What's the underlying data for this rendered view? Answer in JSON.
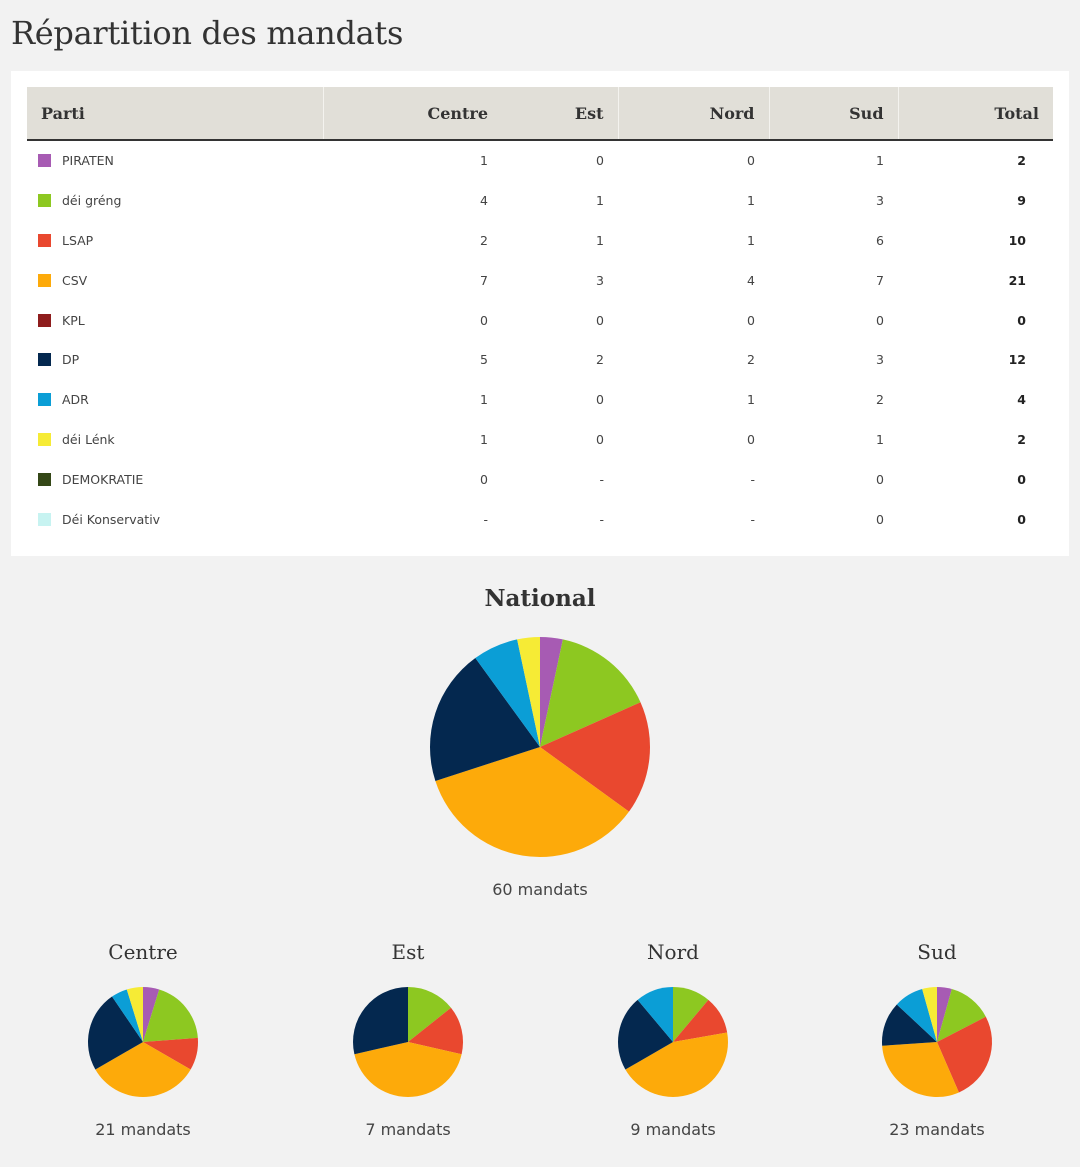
{
  "page_title": "Répartition des mandats",
  "table": {
    "headers": [
      "Parti",
      "Centre",
      "Est",
      "Nord",
      "Sud",
      "Total"
    ],
    "rows": [
      {
        "party": "PIRATEN",
        "color": "#a75bb3",
        "centre": "1",
        "est": "0",
        "nord": "0",
        "sud": "1",
        "total": "2"
      },
      {
        "party": "déi gréng",
        "color": "#8dc821",
        "centre": "4",
        "est": "1",
        "nord": "1",
        "sud": "3",
        "total": "9"
      },
      {
        "party": "LSAP",
        "color": "#e9482f",
        "centre": "2",
        "est": "1",
        "nord": "1",
        "sud": "6",
        "total": "10"
      },
      {
        "party": "CSV",
        "color": "#fdaa0a",
        "centre": "7",
        "est": "3",
        "nord": "4",
        "sud": "7",
        "total": "21"
      },
      {
        "party": "KPL",
        "color": "#8e1d1d",
        "centre": "0",
        "est": "0",
        "nord": "0",
        "sud": "0",
        "total": "0"
      },
      {
        "party": "DP",
        "color": "#04284f",
        "centre": "5",
        "est": "2",
        "nord": "2",
        "sud": "3",
        "total": "12"
      },
      {
        "party": "ADR",
        "color": "#0b9ed6",
        "centre": "1",
        "est": "0",
        "nord": "1",
        "sud": "2",
        "total": "4"
      },
      {
        "party": "déi Lénk",
        "color": "#f6eb35",
        "centre": "1",
        "est": "0",
        "nord": "0",
        "sud": "1",
        "total": "2"
      },
      {
        "party": "DEMOKRATIE",
        "color": "#344717",
        "centre": "0",
        "est": "-",
        "nord": "-",
        "sud": "0",
        "total": "0"
      },
      {
        "party": "Déi Konservativ",
        "color": "#c7f3f1",
        "centre": "-",
        "est": "-",
        "nord": "-",
        "sud": "0",
        "total": "0"
      }
    ]
  },
  "chart_data": [
    {
      "type": "pie",
      "title": "National",
      "subtitle": "60 mandats",
      "labels": [
        "PIRATEN",
        "déi gréng",
        "LSAP",
        "CSV",
        "KPL",
        "DP",
        "ADR",
        "déi Lénk"
      ],
      "colors": [
        "#a75bb3",
        "#8dc821",
        "#e9482f",
        "#fdaa0a",
        "#8e1d1d",
        "#04284f",
        "#0b9ed6",
        "#f6eb35"
      ],
      "values": [
        2,
        9,
        10,
        21,
        0,
        12,
        4,
        2
      ]
    },
    {
      "type": "pie",
      "title": "Centre",
      "subtitle": "21 mandats",
      "labels": [
        "PIRATEN",
        "déi gréng",
        "LSAP",
        "CSV",
        "KPL",
        "DP",
        "ADR",
        "déi Lénk"
      ],
      "colors": [
        "#a75bb3",
        "#8dc821",
        "#e9482f",
        "#fdaa0a",
        "#8e1d1d",
        "#04284f",
        "#0b9ed6",
        "#f6eb35"
      ],
      "values": [
        1,
        4,
        2,
        7,
        0,
        5,
        1,
        1
      ]
    },
    {
      "type": "pie",
      "title": "Est",
      "subtitle": "7 mandats",
      "labels": [
        "PIRATEN",
        "déi gréng",
        "LSAP",
        "CSV",
        "KPL",
        "DP",
        "ADR",
        "déi Lénk"
      ],
      "colors": [
        "#a75bb3",
        "#8dc821",
        "#e9482f",
        "#fdaa0a",
        "#8e1d1d",
        "#04284f",
        "#0b9ed6",
        "#f6eb35"
      ],
      "values": [
        0,
        1,
        1,
        3,
        0,
        2,
        0,
        0
      ]
    },
    {
      "type": "pie",
      "title": "Nord",
      "subtitle": "9 mandats",
      "labels": [
        "PIRATEN",
        "déi gréng",
        "LSAP",
        "CSV",
        "KPL",
        "DP",
        "ADR",
        "déi Lénk"
      ],
      "colors": [
        "#a75bb3",
        "#8dc821",
        "#e9482f",
        "#fdaa0a",
        "#8e1d1d",
        "#04284f",
        "#0b9ed6",
        "#f6eb35"
      ],
      "values": [
        0,
        1,
        1,
        4,
        0,
        2,
        1,
        0
      ]
    },
    {
      "type": "pie",
      "title": "Sud",
      "subtitle": "23 mandats",
      "labels": [
        "PIRATEN",
        "déi gréng",
        "LSAP",
        "CSV",
        "KPL",
        "DP",
        "ADR",
        "déi Lénk"
      ],
      "colors": [
        "#a75bb3",
        "#8dc821",
        "#e9482f",
        "#fdaa0a",
        "#8e1d1d",
        "#04284f",
        "#0b9ed6",
        "#f6eb35"
      ],
      "values": [
        1,
        3,
        6,
        7,
        0,
        3,
        2,
        1
      ]
    }
  ]
}
